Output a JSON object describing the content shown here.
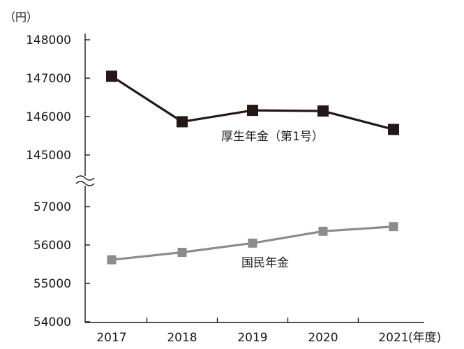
{
  "chart_data": {
    "type": "line",
    "ylabel": "（円）",
    "x_unit": "(年度)",
    "categories": [
      "2017",
      "2018",
      "2019",
      "2020",
      "2021"
    ],
    "y_axis_break": true,
    "y_ticks_upper": [
      145000,
      146000,
      147000,
      148000
    ],
    "y_ticks_lower": [
      54000,
      55000,
      56000,
      57000
    ],
    "ylim_upper": [
      145000,
      148000
    ],
    "ylim_lower": [
      54000,
      57000
    ],
    "grid": false,
    "series": [
      {
        "name": "厚生年金（第1号）",
        "values": [
          147051,
          145865,
          146162,
          146145,
          145665
        ],
        "color": "#231815",
        "marker": "square"
      },
      {
        "name": "国民年金",
        "values": [
          55615,
          55809,
          56049,
          56358,
          56479
        ],
        "color": "#8c8c8c",
        "marker": "square"
      }
    ]
  }
}
